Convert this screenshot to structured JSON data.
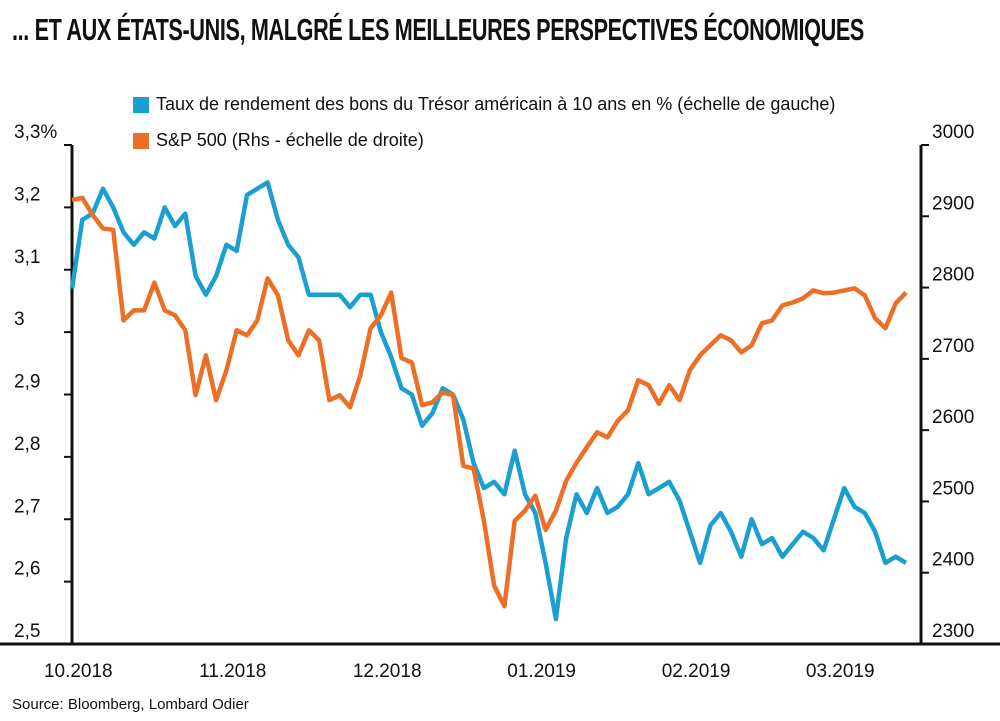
{
  "chart_data": {
    "type": "line",
    "title": "... ET AUX ÉTATS-UNIS, MALGRÉ LES MEILLEURES PERSPECTIVES ÉCONOMIQUES",
    "source": "Source: Bloomberg, Lombard Odier",
    "categories": [
      null,
      "10.2018",
      null,
      null,
      null,
      null,
      null,
      null,
      null,
      null,
      null,
      null,
      null,
      null,
      null,
      null,
      "11.2018",
      null,
      null,
      null,
      null,
      null,
      null,
      null,
      null,
      null,
      null,
      null,
      null,
      null,
      null,
      "12.2018",
      null,
      null,
      null,
      null,
      null,
      null,
      null,
      null,
      null,
      null,
      null,
      null,
      null,
      null,
      "01.2019",
      null,
      null,
      null,
      null,
      null,
      null,
      null,
      null,
      null,
      null,
      null,
      null,
      null,
      null,
      "02.2019",
      null,
      null,
      null,
      null,
      null,
      null,
      null,
      null,
      null,
      null,
      null,
      null,
      null,
      "03.2019",
      null,
      null,
      null,
      null,
      null,
      null
    ],
    "series": [
      {
        "name": "Taux de rendement des bons du Trésor américain à 10 ans en % (échelle de gauche)",
        "color": "#1a9fd0",
        "axis": "y",
        "values": [
          3.07,
          3.18,
          3.19,
          3.23,
          3.2,
          3.16,
          3.14,
          3.16,
          3.15,
          3.2,
          3.17,
          3.19,
          3.09,
          3.06,
          3.09,
          3.14,
          3.13,
          3.22,
          3.23,
          3.24,
          3.18,
          3.14,
          3.12,
          3.06,
          3.06,
          3.06,
          3.06,
          3.04,
          3.06,
          3.06,
          3.0,
          2.96,
          2.91,
          2.9,
          2.85,
          2.87,
          2.91,
          2.9,
          2.86,
          2.79,
          2.75,
          2.76,
          2.74,
          2.81,
          2.74,
          2.71,
          2.63,
          2.54,
          2.67,
          2.74,
          2.71,
          2.75,
          2.71,
          2.72,
          2.74,
          2.79,
          2.74,
          2.75,
          2.76,
          2.73,
          2.68,
          2.63,
          2.69,
          2.71,
          2.68,
          2.64,
          2.7,
          2.66,
          2.67,
          2.64,
          2.66,
          2.68,
          2.67,
          2.65,
          2.7,
          2.75,
          2.72,
          2.71,
          2.68,
          2.63,
          2.64,
          2.63
        ]
      },
      {
        "name": "S&P 500 (Rhs - échelle de droite)",
        "color": "#ec6f25",
        "axis": "y2",
        "values": [
          2923,
          2926,
          2902,
          2883,
          2881,
          2754,
          2768,
          2768,
          2807,
          2768,
          2761,
          2740,
          2649,
          2705,
          2642,
          2684,
          2740,
          2733,
          2754,
          2813,
          2789,
          2726,
          2705,
          2740,
          2726,
          2642,
          2649,
          2632,
          2677,
          2743,
          2761,
          2793,
          2701,
          2695,
          2635,
          2639,
          2653,
          2649,
          2550,
          2546,
          2473,
          2382,
          2353,
          2473,
          2487,
          2508,
          2460,
          2487,
          2529,
          2554,
          2576,
          2597,
          2590,
          2613,
          2628,
          2670,
          2663,
          2637,
          2663,
          2642,
          2684,
          2705,
          2719,
          2733,
          2726,
          2709,
          2719,
          2750,
          2754,
          2775,
          2779,
          2785,
          2796,
          2792,
          2793,
          2796,
          2799,
          2789,
          2757,
          2743,
          2778,
          2793
        ]
      }
    ],
    "ylim": [
      2.5,
      3.3
    ],
    "yticks": [
      {
        "value": 2.5,
        "label": "2,5"
      },
      {
        "value": 2.6,
        "label": "2,6"
      },
      {
        "value": 2.7,
        "label": "2,7"
      },
      {
        "value": 2.8,
        "label": "2,8"
      },
      {
        "value": 2.9,
        "label": "2,9"
      },
      3,
      {
        "value": 3.1,
        "label": "3,1"
      },
      {
        "value": 3.2,
        "label": "3,2"
      },
      {
        "value": 3.3,
        "label": "3,3%"
      }
    ],
    "y2lim": [
      2300,
      3000
    ],
    "y2ticks": [
      2300,
      2400,
      2500,
      2600,
      2700,
      2800,
      2900,
      3000
    ]
  }
}
